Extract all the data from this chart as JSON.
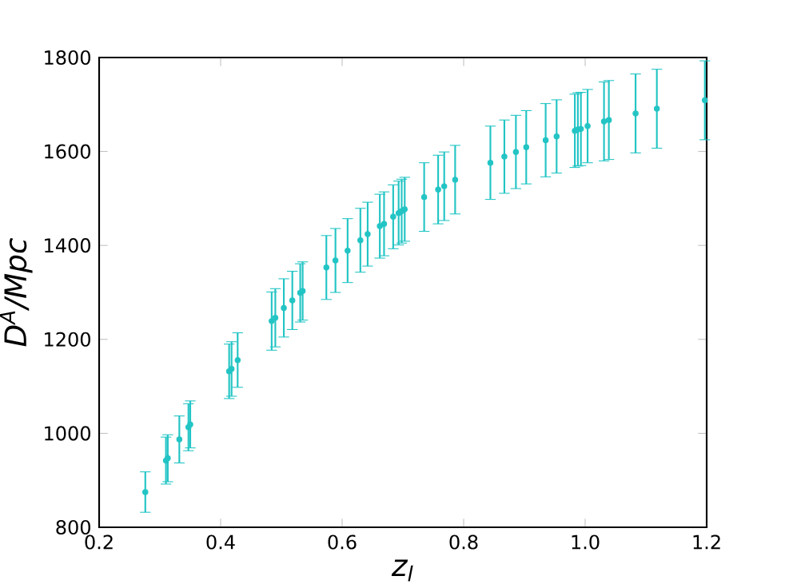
{
  "chart_data": {
    "type": "scatter",
    "xlabel": "z$_{l}$",
    "ylabel": "D$^{A}$/Mpc",
    "xlim": [
      0.2,
      1.2
    ],
    "ylim": [
      800,
      1800
    ],
    "xticks": [
      0.2,
      0.4,
      0.6,
      0.8,
      {
        "value": 1.0,
        "label": "1.0"
      },
      1.2
    ],
    "yticks": [
      800,
      1000,
      1200,
      1400,
      1600,
      1800
    ],
    "marker": "circle",
    "grid": false,
    "series": [
      {
        "color": "#22c4c4",
        "x": [
          0.276,
          0.31,
          0.313,
          0.332,
          0.347,
          0.35,
          0.414,
          0.418,
          0.428,
          0.484,
          0.49,
          0.504,
          0.518,
          0.531,
          0.535,
          0.574,
          0.589,
          0.609,
          0.63,
          0.642,
          0.662,
          0.669,
          0.684,
          0.693,
          0.698,
          0.703,
          0.735,
          0.758,
          0.768,
          0.786,
          0.844,
          0.867,
          0.886,
          0.903,
          0.935,
          0.953,
          0.983,
          0.988,
          0.993,
          1.004,
          1.031,
          1.039,
          1.083,
          1.118,
          1.197
        ],
        "values": [
          875,
          942,
          947,
          987,
          1013,
          1019,
          1132,
          1137,
          1156,
          1239,
          1246,
          1267,
          1283,
          1299,
          1303,
          1353,
          1368,
          1389,
          1411,
          1424,
          1441,
          1446,
          1461,
          1469,
          1473,
          1477,
          1503,
          1519,
          1526,
          1540,
          1576,
          1589,
          1599,
          1609,
          1624,
          1632,
          1644,
          1647,
          1648,
          1654,
          1664,
          1667,
          1681,
          1691,
          1709
        ],
        "errors": [
          43,
          50,
          50,
          50,
          50,
          50,
          58,
          58,
          58,
          62,
          62,
          62,
          62,
          62,
          62,
          68,
          68,
          68,
          68,
          68,
          68,
          68,
          68,
          68,
          68,
          68,
          73,
          73,
          73,
          73,
          78,
          78,
          78,
          78,
          78,
          78,
          78,
          78,
          78,
          78,
          84,
          84,
          84,
          84,
          84
        ]
      }
    ]
  }
}
